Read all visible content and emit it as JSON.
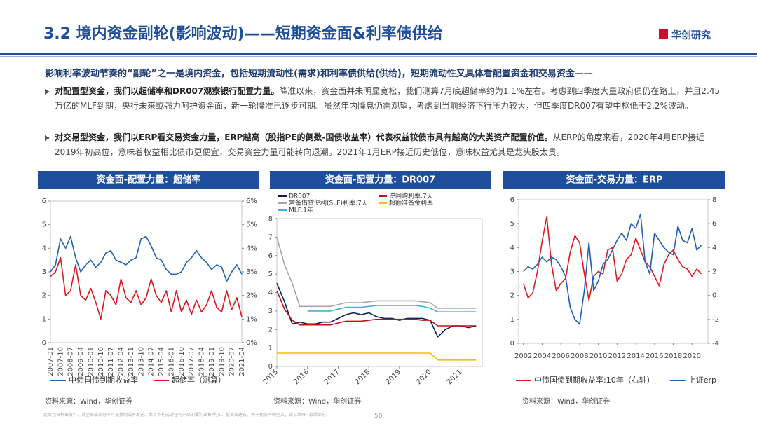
{
  "header": {
    "title": "3.2 境内资金副轮(影响波动)——短期资金面&利率债供给",
    "logo": "华创研究"
  },
  "intro": "影响利率波动节奏的“副轮”之一是境内资金，包括短期流动性(需求)和利率债供给(供给)，短期流动性又具体看配置资金和交易资金——",
  "bullets": [
    {
      "bold": "对配置型资金，我们以超储率和DR007观察银行配置力量。",
      "text": "降准以来，资金面并未明显宽松，我们测算7月底超储率约为1.1%左右。考虑到四季度大量政府债仍在路上，并且2.45万亿的MLF到期，央行未来或强力呵护资金面，新一轮降准已逐步可期。虽然年内降息仍需观望，考虑到当前经济下行压力较大，但四季度DR007有望中枢低于2.2%波动。"
    },
    {
      "bold": "对交易型资金，我们以ERP看交易资金力量，ERP越高（股指PE的倒数-国债收益率）代表权益较债市具有越高的大类资产配置价值。",
      "text": "从ERP的角度来看，2020年4月ERP接近2019年初高位，意味着权益相比债市更便宜，交易资金力量可能转向退潮。2021年1月ERP接近历史低位，意味权益尤其是龙头股太贵。"
    }
  ],
  "footer": {
    "disclaimer": "此页包含机密资料，其全部或部分不可被复制或再发送。本页不构成对任何产品的要约出售/购买、投资或建议。关于免责声明全文，请见本PPT最后部分。",
    "page": "58"
  },
  "chart_data": [
    {
      "type": "line",
      "title": "资金面-配置力量：超储率",
      "source": "资料来源：Wind，华创证券",
      "legend": "bottom",
      "categories": [
        "2007-01",
        null,
        "2007-10",
        null,
        "2008-07",
        null,
        "2009-04",
        null,
        "2010-01",
        null,
        "2010-10",
        null,
        "2011-07",
        null,
        "2012-04",
        null,
        "2013-01",
        null,
        "2013-10",
        null,
        "2014-07",
        null,
        "2015-04",
        null,
        "2016-01",
        null,
        "2016-10",
        null,
        "2017-07",
        null,
        "2018-04",
        null,
        "2019-01",
        null,
        "2019-10",
        null,
        "2020-07",
        null,
        "2021-04"
      ],
      "ylim": [
        0,
        6
      ],
      "yticks": [
        0,
        1,
        2,
        3,
        4,
        5,
        6
      ],
      "y2lim": [
        0,
        6
      ],
      "y2ticks": [
        {
          "value": 0,
          "label": "0%"
        },
        {
          "value": 1,
          "label": "1%"
        },
        {
          "value": 2,
          "label": "2%"
        },
        {
          "value": 3,
          "label": "3%"
        },
        {
          "value": 4,
          "label": "4%"
        },
        {
          "value": 5,
          "label": "5%"
        },
        {
          "value": 6,
          "label": "6%"
        }
      ],
      "series": [
        {
          "name": "中债国债到期收益率",
          "color": "#1f5fb4",
          "values": [
            3.0,
            3.3,
            4.4,
            4.0,
            4.5,
            3.6,
            3.0,
            3.3,
            3.5,
            3.2,
            3.4,
            3.8,
            3.9,
            3.5,
            3.4,
            3.3,
            3.5,
            3.6,
            4.4,
            4.5,
            4.1,
            3.6,
            3.5,
            3.1,
            2.9,
            2.9,
            3.0,
            3.4,
            3.6,
            3.9,
            3.6,
            3.4,
            3.1,
            3.3,
            3.2,
            2.6,
            3.0,
            3.3,
            2.9
          ]
        },
        {
          "name": "超储率（测算）",
          "color": "#d7191c",
          "axis": "y2",
          "values": [
            2.8,
            3.0,
            3.6,
            2.0,
            2.2,
            3.3,
            2.0,
            1.8,
            2.3,
            1.7,
            1.0,
            2.2,
            2.0,
            1.6,
            2.7,
            1.9,
            1.7,
            2.2,
            1.6,
            1.9,
            2.7,
            2.0,
            1.7,
            2.2,
            1.3,
            2.2,
            1.3,
            1.8,
            1.2,
            1.8,
            1.3,
            1.6,
            2.2,
            1.5,
            1.3,
            2.2,
            1.4,
            1.9,
            1.1
          ]
        }
      ]
    },
    {
      "type": "line",
      "title": "资金面-配置力量：DR007",
      "source": "资料来源：Wind，华创证券",
      "legend": "upper left",
      "x": [
        2015,
        2015.25,
        2015.5,
        2015.75,
        2016,
        2016.25,
        2016.5,
        2016.75,
        2017,
        2017.25,
        2017.5,
        2017.75,
        2018,
        2018.25,
        2018.5,
        2018.75,
        2019,
        2019.25,
        2019.5,
        2019.75,
        2020,
        2020.25,
        2020.5,
        2020.75,
        2021,
        2021.25,
        2021.5
      ],
      "xlim": [
        2015,
        2021.7
      ],
      "xticks": [
        2015,
        2016,
        2017,
        2018,
        2019,
        2020,
        2021
      ],
      "ylim": [
        0,
        8
      ],
      "yticks": [
        0,
        1,
        2,
        3,
        4,
        5,
        6,
        7,
        8
      ],
      "series": [
        {
          "name": "DR007",
          "color": "#0b1f5c",
          "values": [
            4.5,
            3.5,
            2.3,
            2.4,
            2.3,
            2.3,
            2.4,
            2.4,
            2.6,
            2.8,
            2.9,
            2.8,
            2.9,
            2.7,
            2.6,
            2.6,
            2.5,
            2.6,
            2.6,
            2.6,
            2.5,
            1.6,
            2.0,
            2.2,
            2.2,
            2.1,
            2.2
          ]
        },
        {
          "name": "逆回购利率:7天",
          "color": "#c0111a",
          "values": [
            4.1,
            3.1,
            2.5,
            2.25,
            2.25,
            2.25,
            2.25,
            2.25,
            2.35,
            2.45,
            2.45,
            2.45,
            2.5,
            2.55,
            2.55,
            2.55,
            2.55,
            2.55,
            2.55,
            2.5,
            2.5,
            2.2,
            2.2,
            2.2,
            2.2,
            2.2,
            2.2
          ]
        },
        {
          "name": "常备借贷便利(SLF)利率:7天",
          "color": "#a6a6a6",
          "values": [
            7,
            5.5,
            4.5,
            3.25,
            3.25,
            3.25,
            3.25,
            3.25,
            3.35,
            3.45,
            3.45,
            3.45,
            3.5,
            3.55,
            3.55,
            3.55,
            3.55,
            3.55,
            3.55,
            3.5,
            3.45,
            3.15,
            3.15,
            3.15,
            3.15,
            3.15,
            3.15
          ]
        },
        {
          "name": "超额准备金利率",
          "color": "#f2c200",
          "values": [
            0.72,
            0.72,
            0.72,
            0.72,
            0.72,
            0.72,
            0.72,
            0.72,
            0.72,
            0.72,
            0.72,
            0.72,
            0.72,
            0.72,
            0.72,
            0.72,
            0.72,
            0.72,
            0.72,
            0.72,
            0.72,
            0.35,
            0.35,
            0.35,
            0.35,
            0.35,
            0.35
          ]
        },
        {
          "name": "MLF:1年",
          "color": "#37b6d6",
          "values": [
            null,
            null,
            null,
            null,
            3.0,
            3.0,
            3.0,
            3.0,
            3.1,
            3.2,
            3.2,
            3.2,
            3.25,
            3.3,
            3.3,
            3.3,
            3.3,
            3.3,
            3.3,
            3.25,
            3.15,
            2.95,
            2.95,
            2.95,
            2.95,
            2.95,
            2.95
          ]
        }
      ]
    },
    {
      "type": "line",
      "title": "资金面-交易力量：ERP",
      "source": "资料来源：Wind，华创证券",
      "legend": "bottom",
      "x": [
        2002,
        2002.5,
        2003,
        2003.5,
        2004,
        2004.5,
        2005,
        2005.5,
        2006,
        2006.5,
        2007,
        2007.5,
        2008,
        2008.5,
        2009,
        2009.5,
        2010,
        2010.5,
        2011,
        2011.5,
        2012,
        2012.5,
        2013,
        2013.5,
        2014,
        2014.5,
        2015,
        2015.5,
        2016,
        2016.5,
        2017,
        2017.5,
        2018,
        2018.5,
        2019,
        2019.5,
        2020,
        2020.5,
        2021
      ],
      "xlim": [
        2001.5,
        2021.7
      ],
      "xticks": [
        2002,
        2004,
        2006,
        2008,
        2010,
        2012,
        2014,
        2016,
        2018,
        2020
      ],
      "ylim": [
        0,
        6
      ],
      "yticks": [
        0,
        1,
        2,
        3,
        4,
        5,
        6
      ],
      "y2lim": [
        -4,
        8
      ],
      "y2ticks": [
        -4,
        -2,
        0,
        2,
        4,
        6,
        8
      ],
      "series": [
        {
          "name": "中债国债到期收益率:10年（右轴）",
          "color": "#e0191f",
          "axis": "y2",
          "values": [
            1.0,
            -0.2,
            0.2,
            2.0,
            4.5,
            6.6,
            2.6,
            0.4,
            1.0,
            1.4,
            3.6,
            5.0,
            4.4,
            1.8,
            -0.4,
            1.6,
            2.0,
            1.8,
            3.8,
            4.0,
            1.2,
            1.8,
            3.0,
            3.4,
            4.8,
            3.8,
            2.8,
            2.4,
            1.6,
            0.8,
            2.6,
            3.4,
            3.8,
            3.0,
            2.4,
            2.2,
            1.6,
            2.2,
            1.8
          ]
        },
        {
          "name": "上证erp",
          "color": "#1f5fb4",
          "values": [
            3.0,
            3.2,
            3.1,
            3.3,
            3.6,
            3.4,
            3.6,
            3.5,
            3.2,
            2.8,
            1.5,
            1.0,
            0.8,
            2.2,
            4.2,
            2.2,
            2.6,
            3.3,
            3.5,
            3.9,
            4.3,
            4.6,
            4.3,
            5.0,
            4.8,
            5.4,
            3.4,
            2.9,
            4.6,
            4.3,
            4.0,
            3.8,
            3.7,
            4.9,
            4.3,
            4.2,
            4.8,
            3.9,
            4.1
          ]
        }
      ]
    }
  ]
}
